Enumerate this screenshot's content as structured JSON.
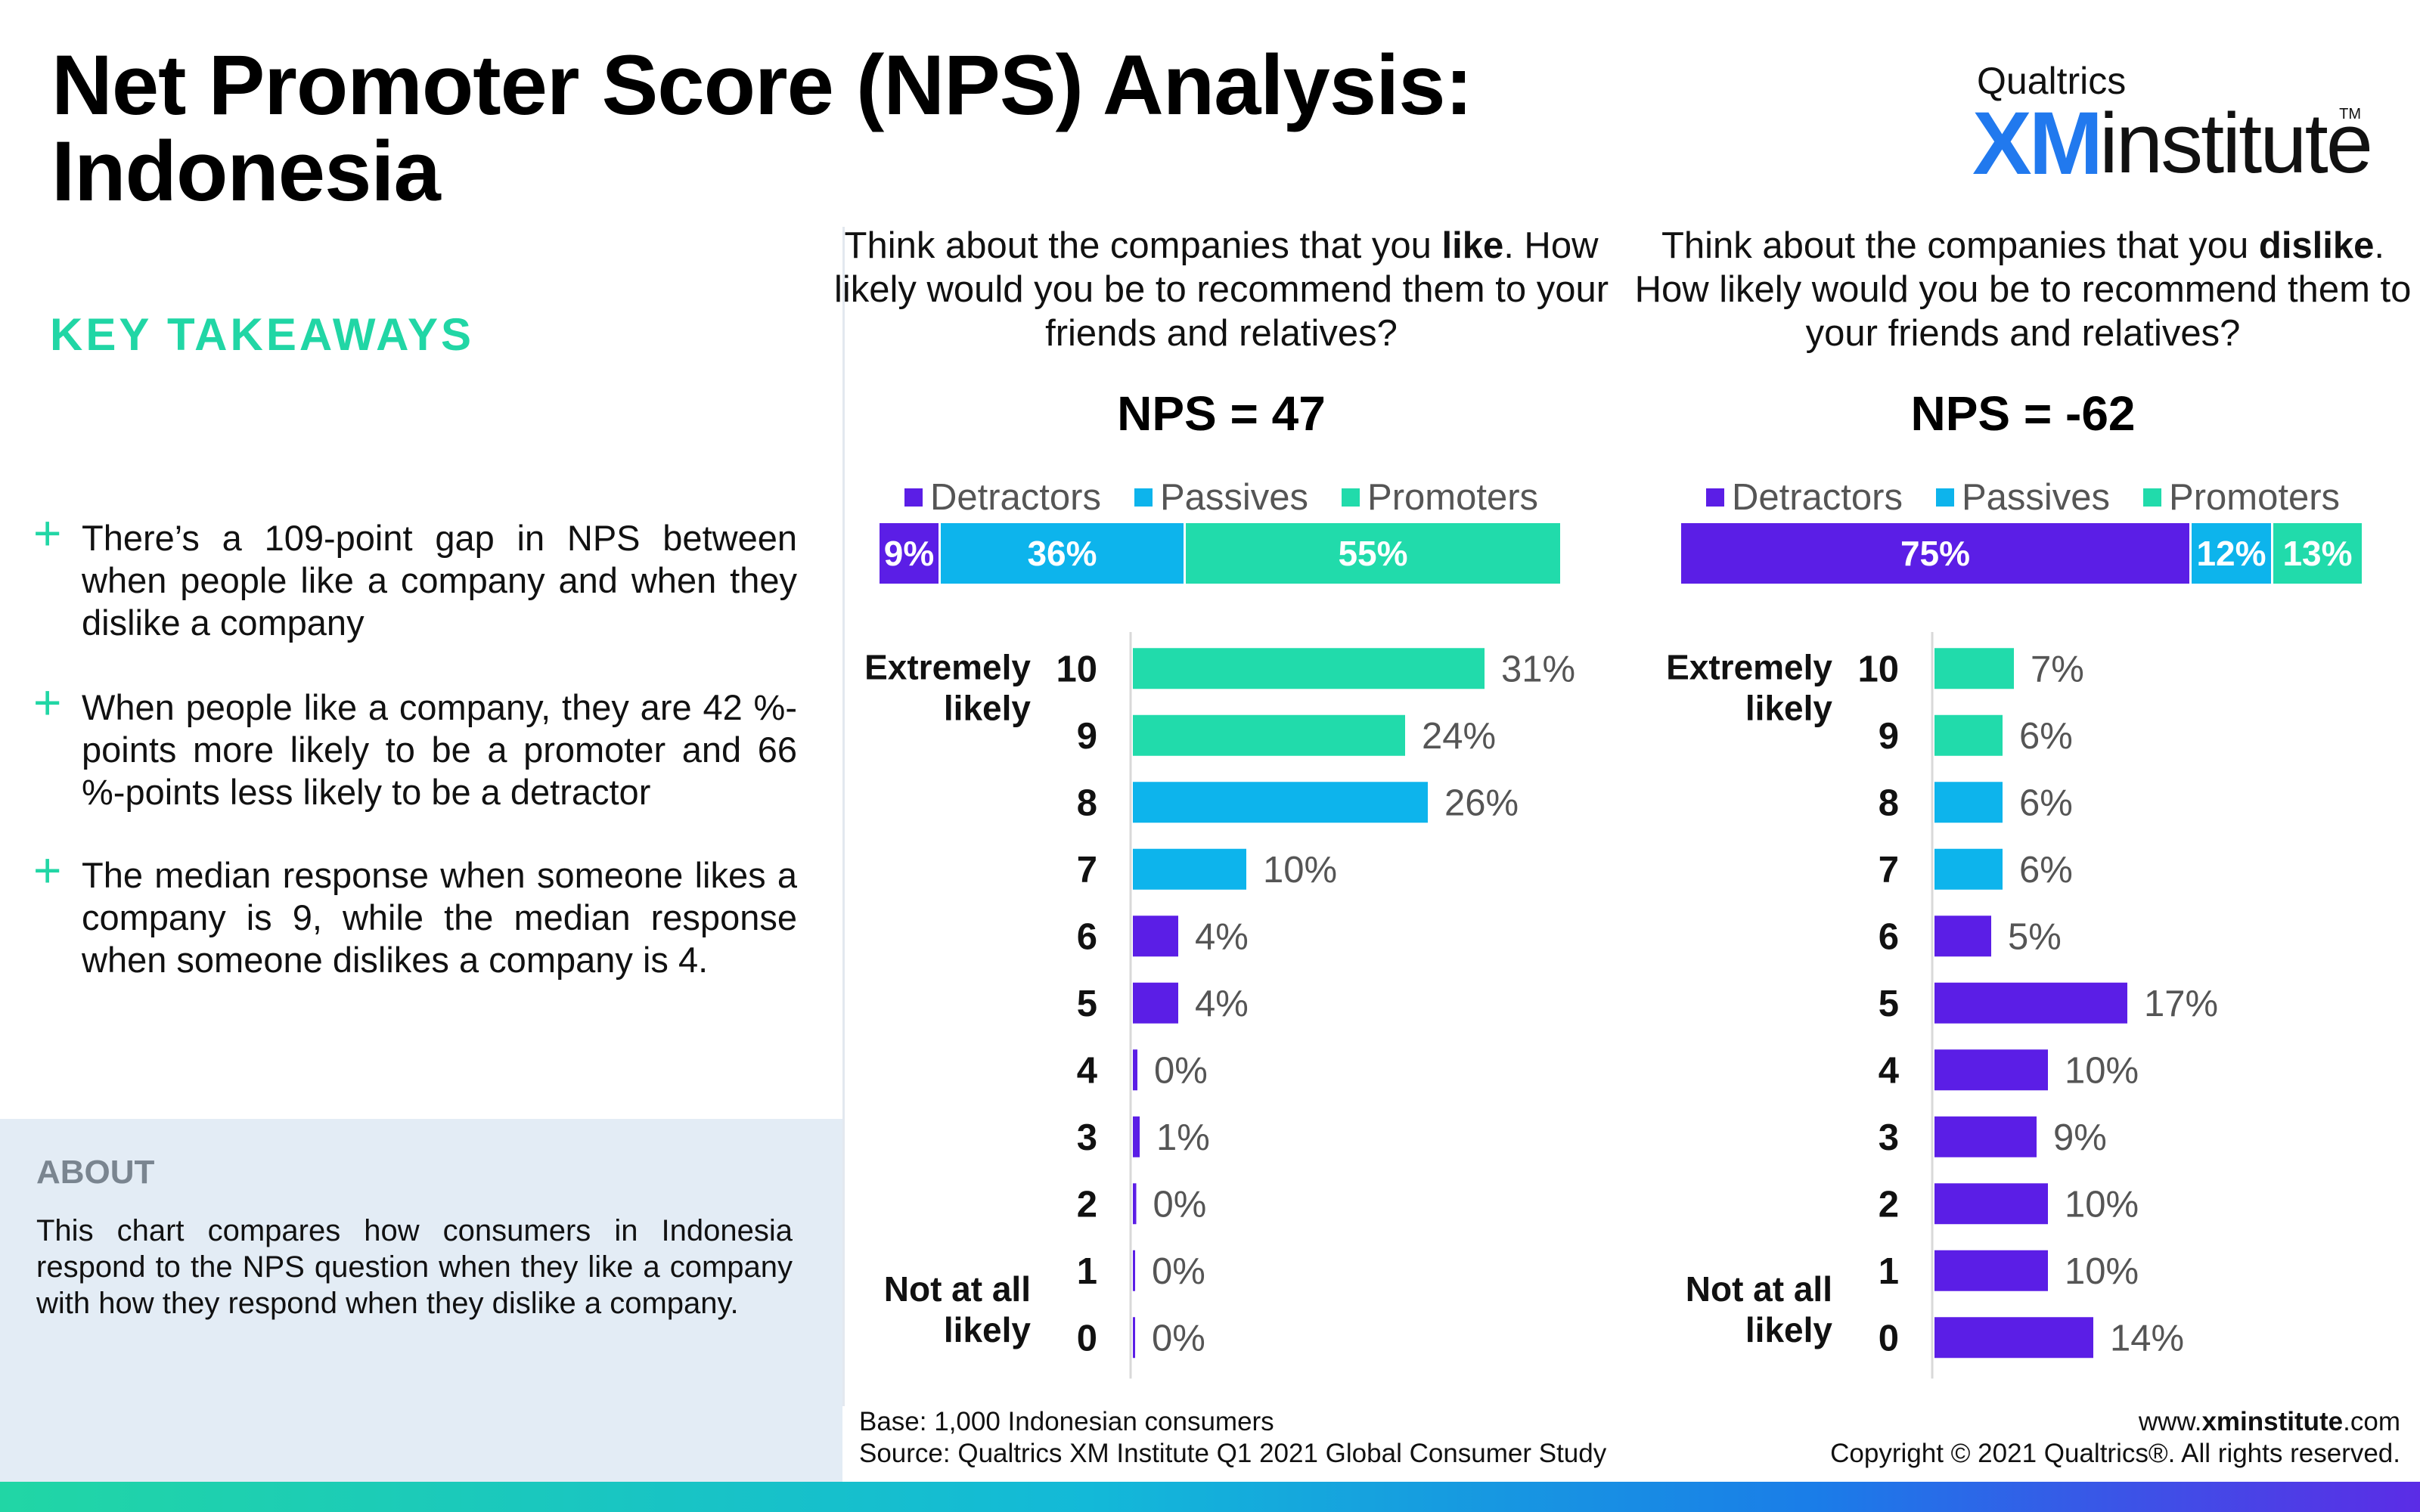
{
  "title": "Net Promoter Score (NPS) Analysis: Indonesia",
  "logo": {
    "brand": "Qualtrics",
    "xm": "XM",
    "institute": "institute",
    "tm": "TM"
  },
  "key_takeaways": {
    "heading": "KEY TAKEAWAYS",
    "items": [
      "There’s a 109-point gap in NPS between when people like a company and when they dislike a company",
      "When people like a company, they are 42 %-points more likely to be a promoter and 66 %-points less likely to be a detractor",
      "The median response when someone likes a company is 9, while the median response when someone dislikes a company is 4."
    ]
  },
  "about": {
    "heading": "ABOUT",
    "text": "This chart compares how consumers in Indonesia respond to the NPS question when they like a company with how they respond when they dislike a company."
  },
  "footer": {
    "base": "Base: 1,000 Indonesian consumers",
    "source": "Source: Qualtrics XM Institute Q1 2021 Global Consumer Study",
    "url_prefix": "www.",
    "url_bold": "xminstitute",
    "url_suffix": ".com",
    "copyright": "Copyright © 2021 Qualtrics®. All rights reserved."
  },
  "colors": {
    "detractor": "#5b1ee6",
    "passive": "#0db4ec",
    "promoter": "#21dbab",
    "accent": "#21d6a5"
  },
  "chart_data": [
    {
      "type": "bar",
      "question_pre": "Think about the companies that you ",
      "question_bold": "like",
      "question_post": ". How likely would you be to recommend them to your friends and relatives?",
      "nps_label": "NPS = 47",
      "legend": [
        "Detractors",
        "Passives",
        "Promoters"
      ],
      "stacked": [
        {
          "name": "Detractors",
          "value": 9,
          "label": "9%"
        },
        {
          "name": "Passives",
          "value": 36,
          "label": "36%"
        },
        {
          "name": "Promoters",
          "value": 55,
          "label": "55%"
        }
      ],
      "top_anchor": [
        "Extremely",
        "likely"
      ],
      "bottom_anchor": [
        "Not at all",
        "likely"
      ],
      "categories": [
        "10",
        "9",
        "8",
        "7",
        "6",
        "5",
        "4",
        "3",
        "2",
        "1",
        "0"
      ],
      "values": [
        31,
        24,
        26,
        10,
        4,
        4,
        0.4,
        0.6,
        0.3,
        0.1,
        0.1
      ],
      "value_labels": [
        "31%",
        "24%",
        "26%",
        "10%",
        "4%",
        "4%",
        "0%",
        "1%",
        "0%",
        "0%",
        "0%"
      ]
    },
    {
      "type": "bar",
      "question_pre": "Think about the companies that you ",
      "question_bold": "dislike",
      "question_post": ". How likely would you be to recommend them to your friends and relatives?",
      "nps_label": "NPS = -62",
      "legend": [
        "Detractors",
        "Passives",
        "Promoters"
      ],
      "stacked": [
        {
          "name": "Detractors",
          "value": 75,
          "label": "75%"
        },
        {
          "name": "Passives",
          "value": 12,
          "label": "12%"
        },
        {
          "name": "Promoters",
          "value": 13,
          "label": "13%"
        }
      ],
      "top_anchor": [
        "Extremely",
        "likely"
      ],
      "bottom_anchor": [
        "Not at all",
        "likely"
      ],
      "categories": [
        "10",
        "9",
        "8",
        "7",
        "6",
        "5",
        "4",
        "3",
        "2",
        "1",
        "0"
      ],
      "values": [
        7,
        6,
        6,
        6,
        5,
        17,
        10,
        9,
        10,
        10,
        14
      ],
      "value_labels": [
        "7%",
        "6%",
        "6%",
        "6%",
        "5%",
        "17%",
        "10%",
        "9%",
        "10%",
        "10%",
        "14%"
      ]
    }
  ]
}
